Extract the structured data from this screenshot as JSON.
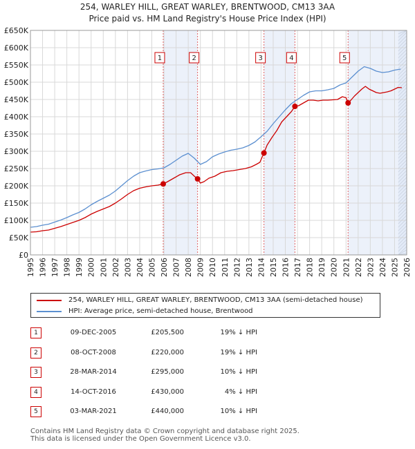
{
  "title_line1": "254, WARLEY HILL, GREAT WARLEY, BRENTWOOD, CM13 3AA",
  "title_line2": "Price paid vs. HM Land Registry's House Price Index (HPI)",
  "chart_data": {
    "type": "line",
    "title": "254, WARLEY HILL, GREAT WARLEY, BRENTWOOD, CM13 3AA",
    "subtitle": "Price paid vs. HM Land Registry's House Price Index (HPI)",
    "xlabel": "",
    "ylabel": "",
    "xlim": [
      1995,
      2026
    ],
    "ylim": [
      0,
      650000
    ],
    "y_ticks": [
      0,
      50000,
      100000,
      150000,
      200000,
      250000,
      300000,
      350000,
      400000,
      450000,
      500000,
      550000,
      600000,
      650000
    ],
    "y_tick_labels": [
      "£0",
      "£50K",
      "£100K",
      "£150K",
      "£200K",
      "£250K",
      "£300K",
      "£350K",
      "£400K",
      "£450K",
      "£500K",
      "£550K",
      "£600K",
      "£650K"
    ],
    "x_ticks": [
      1995,
      1996,
      1997,
      1998,
      1999,
      2000,
      2001,
      2002,
      2003,
      2004,
      2005,
      2006,
      2007,
      2008,
      2009,
      2010,
      2011,
      2012,
      2013,
      2014,
      2015,
      2016,
      2017,
      2018,
      2019,
      2020,
      2021,
      2022,
      2023,
      2024,
      2025,
      2026
    ],
    "grid": true,
    "series": [
      {
        "name": "254, WARLEY HILL, GREAT WARLEY, BRENTWOOD, CM13 3AA (semi-detached house)",
        "color": "#cc0000",
        "x": [
          1995.0,
          1995.5,
          1996.0,
          1996.5,
          1997.0,
          1997.5,
          1998.0,
          1998.5,
          1999.0,
          1999.5,
          2000.0,
          2000.5,
          2001.0,
          2001.5,
          2002.0,
          2002.5,
          2003.0,
          2003.5,
          2004.0,
          2004.5,
          2005.0,
          2005.5,
          2005.94,
          2006.3,
          2006.8,
          2007.3,
          2007.8,
          2008.2,
          2008.5,
          2008.77,
          2009.0,
          2009.3,
          2009.7,
          2010.2,
          2010.7,
          2011.2,
          2011.7,
          2012.2,
          2012.7,
          2013.2,
          2013.6,
          2013.9,
          2014.24,
          2014.5,
          2014.9,
          2015.3,
          2015.7,
          2016.1,
          2016.5,
          2016.79,
          2017.1,
          2017.5,
          2017.9,
          2018.3,
          2018.7,
          2019.1,
          2019.5,
          2019.9,
          2020.3,
          2020.7,
          2021.0,
          2021.17,
          2021.4,
          2021.7,
          2022.0,
          2022.3,
          2022.6,
          2022.9,
          2023.2,
          2023.5,
          2023.8,
          2024.1,
          2024.4,
          2024.7,
          2025.0,
          2025.3,
          2025.6
        ],
        "y": [
          66000,
          67000,
          70000,
          72000,
          77000,
          82000,
          88000,
          94000,
          100000,
          108000,
          118000,
          126000,
          133000,
          140000,
          150000,
          162000,
          175000,
          186000,
          193000,
          197000,
          200000,
          202000,
          205500,
          212000,
          222000,
          232000,
          238000,
          238000,
          228000,
          220000,
          208000,
          212000,
          222000,
          228000,
          238000,
          242000,
          244000,
          247000,
          250000,
          255000,
          262000,
          268000,
          295000,
          318000,
          340000,
          360000,
          385000,
          400000,
          415000,
          430000,
          432000,
          440000,
          448000,
          448000,
          446000,
          448000,
          448000,
          449000,
          450000,
          458000,
          455000,
          440000,
          448000,
          460000,
          470000,
          480000,
          488000,
          480000,
          475000,
          470000,
          468000,
          470000,
          472000,
          475000,
          480000,
          485000,
          484000
        ]
      },
      {
        "name": "HPI: Average price, semi-detached house, Brentwood",
        "color": "#5b8fd0",
        "x": [
          1995.0,
          1995.5,
          1996.0,
          1996.5,
          1997.0,
          1997.5,
          1998.0,
          1998.5,
          1999.0,
          1999.5,
          2000.0,
          2000.5,
          2001.0,
          2001.5,
          2002.0,
          2002.5,
          2003.0,
          2003.5,
          2004.0,
          2004.5,
          2005.0,
          2005.5,
          2006.0,
          2006.5,
          2007.0,
          2007.5,
          2008.0,
          2008.5,
          2009.0,
          2009.5,
          2010.0,
          2010.5,
          2011.0,
          2011.5,
          2012.0,
          2012.5,
          2013.0,
          2013.5,
          2014.0,
          2014.5,
          2015.0,
          2015.5,
          2016.0,
          2016.5,
          2017.0,
          2017.5,
          2018.0,
          2018.5,
          2019.0,
          2019.5,
          2020.0,
          2020.5,
          2021.0,
          2021.5,
          2022.0,
          2022.5,
          2023.0,
          2023.5,
          2024.0,
          2024.5,
          2025.0,
          2025.5
        ],
        "y": [
          80000,
          82000,
          86000,
          89000,
          95000,
          101000,
          108000,
          116000,
          123000,
          133000,
          145000,
          155000,
          164000,
          173000,
          185000,
          200000,
          215000,
          228000,
          238000,
          243000,
          247000,
          249000,
          252000,
          262000,
          274000,
          286000,
          294000,
          280000,
          262000,
          270000,
          284000,
          292000,
          298000,
          303000,
          306000,
          310000,
          317000,
          327000,
          342000,
          358000,
          380000,
          400000,
          420000,
          438000,
          450000,
          462000,
          472000,
          475000,
          475000,
          478000,
          482000,
          492000,
          498000,
          515000,
          532000,
          545000,
          540000,
          532000,
          528000,
          530000,
          535000,
          538000
        ]
      }
    ],
    "transactions": [
      {
        "label": "1",
        "date": "09-DEC-2005",
        "x": 2005.94,
        "price": 205500
      },
      {
        "label": "2",
        "date": "08-OCT-2008",
        "x": 2008.77,
        "price": 220000
      },
      {
        "label": "3",
        "date": "28-MAR-2014",
        "x": 2014.24,
        "price": 295000
      },
      {
        "label": "4",
        "date": "14-OCT-2016",
        "x": 2016.79,
        "price": 430000
      },
      {
        "label": "5",
        "date": "03-MAR-2021",
        "x": 2021.17,
        "price": 440000
      }
    ],
    "shaded_spans": [
      [
        2005.94,
        2008.77
      ],
      [
        2014.24,
        2016.79
      ],
      [
        2021.17,
        2026
      ],
      [
        2025.3,
        2026
      ]
    ]
  },
  "legend": {
    "property_label": "254, WARLEY HILL, GREAT WARLEY, BRENTWOOD, CM13 3AA (semi-detached house)",
    "hpi_label": "HPI: Average price, semi-detached house, Brentwood",
    "property_color": "#cc0000",
    "hpi_color": "#5b8fd0"
  },
  "sales": [
    {
      "num": "1",
      "date": "09-DEC-2005",
      "price": "£205,500",
      "hpi": "19% ↓ HPI"
    },
    {
      "num": "2",
      "date": "08-OCT-2008",
      "price": "£220,000",
      "hpi": "19% ↓ HPI"
    },
    {
      "num": "3",
      "date": "28-MAR-2014",
      "price": "£295,000",
      "hpi": "10% ↓ HPI"
    },
    {
      "num": "4",
      "date": "14-OCT-2016",
      "price": "£430,000",
      "hpi": "4% ↓ HPI"
    },
    {
      "num": "5",
      "date": "03-MAR-2021",
      "price": "£440,000",
      "hpi": "10% ↓ HPI"
    }
  ],
  "footer_line1": "Contains HM Land Registry data © Crown copyright and database right 2025.",
  "footer_line2": "This data is licensed under the Open Government Licence v3.0."
}
